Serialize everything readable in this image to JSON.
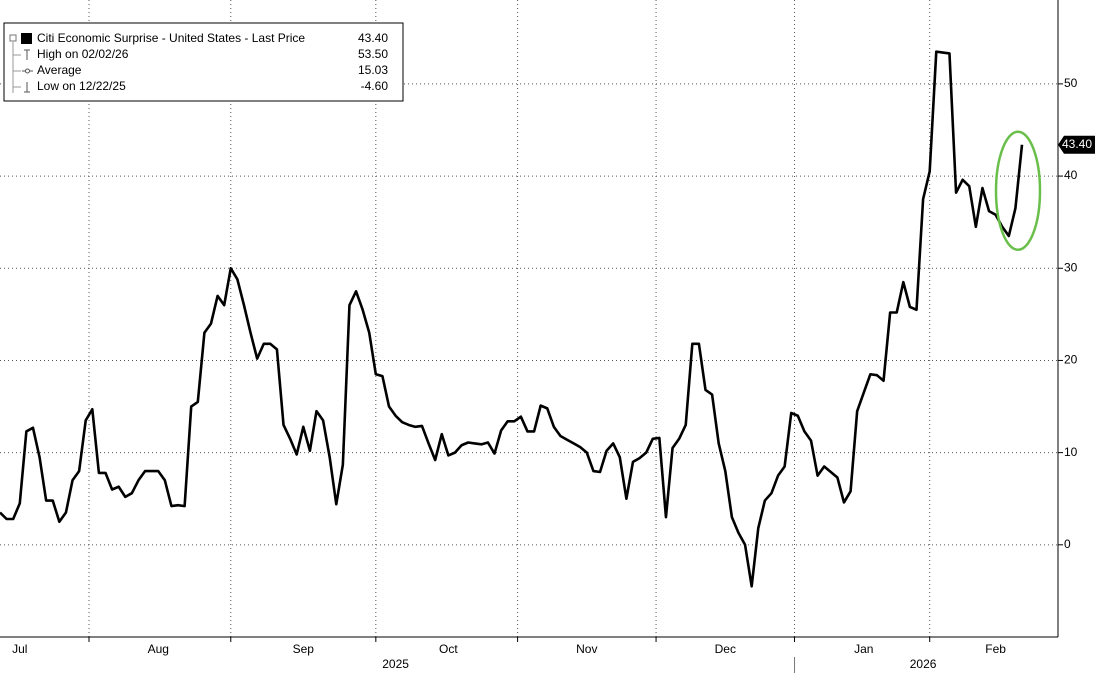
{
  "chart_data": {
    "type": "line",
    "legend": [
      {
        "label": "Citi Economic Surprise - United States - Last Price",
        "value": "43.40"
      },
      {
        "label": "High on 02/02/26",
        "value": "53.50"
      },
      {
        "label": "Average",
        "value": "15.03"
      },
      {
        "label": "Low on 12/22/25",
        "value": "-4.60"
      }
    ],
    "last_label": "43.40",
    "categories": [
      null,
      null,
      null,
      "Jul",
      null,
      null,
      null,
      null,
      null,
      null,
      null,
      null,
      null,
      null,
      null,
      null,
      null,
      null,
      null,
      null,
      null,
      null,
      null,
      null,
      "Aug",
      null,
      null,
      null,
      null,
      null,
      null,
      null,
      null,
      null,
      null,
      null,
      null,
      null,
      null,
      null,
      null,
      null,
      null,
      null,
      null,
      null,
      "Sep",
      null,
      null,
      null,
      null,
      null,
      null,
      null,
      null,
      null,
      null,
      null,
      null,
      null,
      null,
      null,
      null,
      null,
      null,
      null,
      null,
      null,
      "Oct",
      null,
      null,
      null,
      null,
      null,
      null,
      null,
      null,
      null,
      null,
      null,
      null,
      null,
      null,
      null,
      null,
      null,
      null,
      null,
      null,
      "Nov",
      null,
      null,
      null,
      null,
      null,
      null,
      null,
      null,
      null,
      null,
      null,
      null,
      null,
      null,
      null,
      null,
      null,
      null,
      null,
      null,
      "Dec",
      null,
      null,
      null,
      null,
      null,
      null,
      null,
      null,
      null,
      null,
      null,
      null,
      null,
      null,
      null,
      null,
      null,
      null,
      null,
      null,
      "Jan",
      null,
      null,
      null,
      null,
      null,
      null,
      null,
      null,
      null,
      null,
      null,
      null,
      null,
      null,
      null,
      null,
      null,
      null,
      null,
      "Feb",
      null,
      null,
      null,
      null
    ],
    "years": [
      null,
      null,
      null,
      null,
      null,
      null,
      null,
      null,
      null,
      null,
      null,
      null,
      null,
      null,
      null,
      null,
      null,
      null,
      null,
      null,
      null,
      null,
      null,
      null,
      null,
      null,
      null,
      null,
      null,
      null,
      null,
      null,
      null,
      null,
      null,
      null,
      null,
      null,
      null,
      null,
      null,
      null,
      null,
      null,
      null,
      null,
      null,
      null,
      null,
      null,
      null,
      null,
      null,
      null,
      null,
      null,
      null,
      null,
      null,
      null,
      "2025",
      null,
      null,
      null,
      null,
      null,
      null,
      null,
      null,
      null,
      null,
      null,
      null,
      null,
      null,
      null,
      null,
      null,
      null,
      null,
      null,
      null,
      null,
      null,
      null,
      null,
      null,
      null,
      null,
      null,
      null,
      null,
      null,
      null,
      null,
      null,
      null,
      null,
      null,
      null,
      null,
      null,
      null,
      null,
      null,
      null,
      null,
      null,
      null,
      null,
      null,
      null,
      null,
      null,
      null,
      null,
      null,
      null,
      null,
      null,
      null,
      null,
      null,
      null,
      null,
      null,
      null,
      null,
      null,
      null,
      null,
      null,
      null,
      null,
      null,
      null,
      null,
      null,
      null,
      null,
      "2026",
      null,
      null,
      null,
      null,
      null,
      null,
      null,
      null,
      null,
      null,
      null,
      null,
      null,
      null,
      null
    ],
    "series": [
      {
        "name": "Citi Economic Surprise - United States",
        "color": "#000000",
        "values": [
          3.5,
          2.8,
          2.8,
          4.5,
          12.3,
          12.7,
          9.5,
          4.8,
          4.8,
          2.5,
          3.5,
          7,
          8,
          13.5,
          14.7,
          7.8,
          7.8,
          6,
          6.3,
          5.2,
          5.6,
          7,
          8,
          8,
          8,
          7,
          4.2,
          4.3,
          4.2,
          15,
          15.5,
          23,
          24,
          27,
          26,
          30,
          28.8,
          26,
          23,
          20.2,
          21.8,
          21.8,
          21.2,
          13,
          11.5,
          9.8,
          12.8,
          10.2,
          14.5,
          13.5,
          9.5,
          4.4,
          8.7,
          26,
          27.5,
          25.5,
          23,
          18.5,
          18.3,
          15,
          14,
          13.3,
          13,
          12.8,
          12.9,
          11,
          9.2,
          12,
          9.7,
          10,
          10.8,
          11.1,
          11,
          10.9,
          11.1,
          9.9,
          12.4,
          13.4,
          13.4,
          13.9,
          12.3,
          12.3,
          15.1,
          14.8,
          12.8,
          11.8,
          11.4,
          11,
          10.6,
          10,
          8,
          7.9,
          10.2,
          11,
          9.5,
          5,
          9,
          9.4,
          10,
          11.5,
          11.6,
          3,
          10.5,
          11.5,
          13,
          21.8,
          21.8,
          16.8,
          16.3,
          11,
          8,
          3,
          1.3,
          0,
          -4.5,
          1.8,
          4.8,
          5.6,
          7.5,
          8.5,
          14.3,
          14,
          12.3,
          11.3,
          7.5,
          8.5,
          7.9,
          7.3,
          4.6,
          5.8,
          14.5,
          16.5,
          18.5,
          18.4,
          17.8,
          25.2,
          25.2,
          28.5,
          25.8,
          25.5,
          37.5,
          40.5,
          53.5,
          53.4,
          53.3,
          38.2,
          39.6,
          38.9,
          34.5,
          38.7,
          36.2,
          35.8,
          34.5,
          33.5,
          36.5,
          43.4
        ]
      }
    ],
    "ylim": [
      -10,
      59.1
    ],
    "yticks": [
      0,
      10,
      20,
      30,
      40,
      50
    ],
    "grid": true,
    "legend_position": "upper left"
  }
}
